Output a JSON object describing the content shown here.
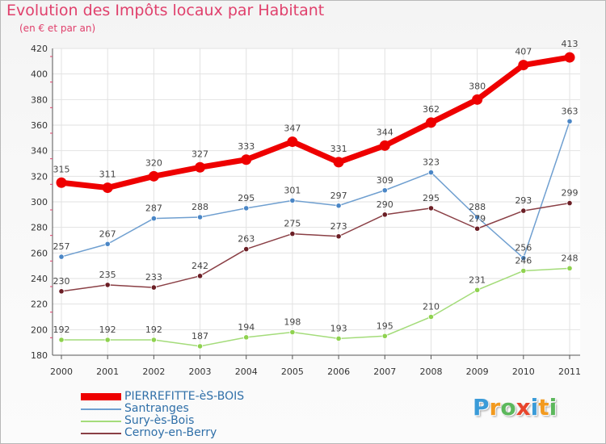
{
  "header": {
    "title": "Evolution des Impôts locaux par Habitant",
    "subtitle": "(en € et par an)"
  },
  "logo": {
    "text": "Proxiti",
    "letters": [
      {
        "char": "P",
        "color": "#3a9bd8"
      },
      {
        "char": "r",
        "color": "#f29a1f"
      },
      {
        "char": "o",
        "color": "#5cb85c"
      },
      {
        "char": "x",
        "color": "#e8452c"
      },
      {
        "char": "i",
        "color": "#3a9bd8"
      },
      {
        "char": "t",
        "color": "#f29a1f"
      },
      {
        "char": "i",
        "color": "#5cb85c"
      }
    ]
  },
  "chart_data": {
    "type": "line",
    "title": "Evolution des Impôts locaux par Habitant",
    "subtitle": "(en € et par an)",
    "xlabel": "",
    "ylabel": "",
    "x": [
      "2000",
      "2001",
      "2002",
      "2003",
      "2004",
      "2005",
      "2006",
      "2007",
      "2008",
      "2009",
      "2010",
      "2011"
    ],
    "yticks": [
      180,
      200,
      220,
      240,
      260,
      280,
      300,
      320,
      340,
      360,
      380,
      400,
      420
    ],
    "ylim": [
      180,
      420
    ],
    "grid": true,
    "legend_position": "bottom-left",
    "series": [
      {
        "name": "PIERREFITTE-èS-BOIS",
        "color": "#ee0000",
        "marker": "#ee0000",
        "emphasis": true,
        "values": [
          315,
          311,
          320,
          327,
          333,
          347,
          331,
          344,
          362,
          380,
          407,
          413
        ]
      },
      {
        "name": "Santranges",
        "color": "#6f9fd0",
        "marker": "#4a86c6",
        "emphasis": false,
        "values": [
          257,
          267,
          287,
          288,
          295,
          301,
          297,
          309,
          323,
          288,
          256,
          363
        ]
      },
      {
        "name": "Sury-ès-Bois",
        "color": "#a4dc7a",
        "marker": "#8fd24f",
        "emphasis": false,
        "values": [
          192,
          192,
          192,
          187,
          194,
          198,
          193,
          195,
          210,
          231,
          246,
          248
        ]
      },
      {
        "name": "Cernoy-en-Berry",
        "color": "#8a3f45",
        "marker": "#6b1e25",
        "emphasis": false,
        "values": [
          230,
          235,
          233,
          242,
          263,
          275,
          273,
          290,
          295,
          279,
          293,
          299
        ]
      }
    ]
  }
}
